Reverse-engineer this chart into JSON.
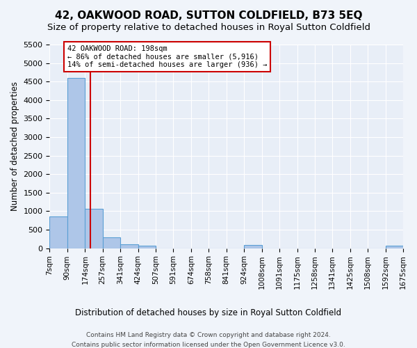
{
  "title": "42, OAKWOOD ROAD, SUTTON COLDFIELD, B73 5EQ",
  "subtitle": "Size of property relative to detached houses in Royal Sutton Coldfield",
  "xlabel": "Distribution of detached houses by size in Royal Sutton Coldfield",
  "ylabel": "Number of detached properties",
  "footer_line1": "Contains HM Land Registry data © Crown copyright and database right 2024.",
  "footer_line2": "Contains public sector information licensed under the Open Government Licence v3.0.",
  "bin_edges": [
    7,
    90,
    174,
    257,
    341,
    424,
    507,
    591,
    674,
    758,
    841,
    924,
    1008,
    1091,
    1175,
    1258,
    1341,
    1425,
    1508,
    1592,
    1675
  ],
  "bin_counts": [
    850,
    4600,
    1060,
    290,
    100,
    75,
    0,
    0,
    0,
    0,
    0,
    80,
    0,
    0,
    0,
    0,
    0,
    0,
    0,
    70
  ],
  "bar_color": "#aec6e8",
  "bar_edge_color": "#5a9fd4",
  "property_size": 198,
  "red_line_color": "#cc0000",
  "annotation_title": "42 OAKWOOD ROAD: 198sqm",
  "annotation_line1": "← 86% of detached houses are smaller (5,916)",
  "annotation_line2": "14% of semi-detached houses are larger (936) →",
  "annotation_box_color": "#cc0000",
  "ylim": [
    0,
    5500
  ],
  "yticks": [
    0,
    500,
    1000,
    1500,
    2000,
    2500,
    3000,
    3500,
    4000,
    4500,
    5000,
    5500
  ],
  "background_color": "#f0f4fa",
  "plot_bg_color": "#e8eef7",
  "grid_color": "#ffffff",
  "title_fontsize": 11,
  "subtitle_fontsize": 9.5
}
